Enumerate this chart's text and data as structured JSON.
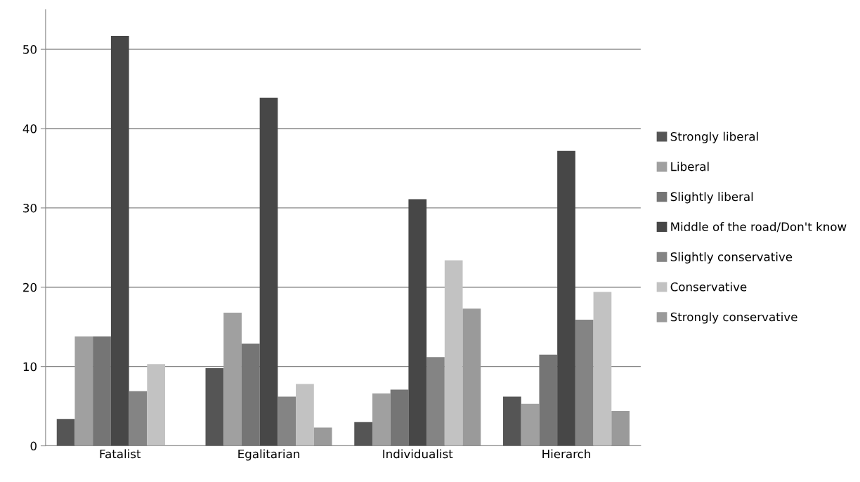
{
  "chart_data": {
    "type": "bar",
    "categories": [
      "Fatalist",
      "Egalitarian",
      "Individualist",
      "Hierarch"
    ],
    "series": [
      {
        "name": "Strongly liberal",
        "color": "#555555",
        "values": [
          3.4,
          9.8,
          3.0,
          6.2
        ]
      },
      {
        "name": "Liberal",
        "color": "#a0a0a0",
        "values": [
          13.8,
          16.8,
          6.6,
          5.3
        ]
      },
      {
        "name": "Slightly liberal",
        "color": "#757575",
        "values": [
          13.8,
          12.9,
          7.1,
          11.5
        ]
      },
      {
        "name": "Middle of the road/Don't know",
        "color": "#474747",
        "values": [
          51.7,
          43.9,
          31.1,
          37.2
        ]
      },
      {
        "name": "Slightly conservative",
        "color": "#848484",
        "values": [
          6.9,
          6.2,
          11.2,
          15.9
        ]
      },
      {
        "name": "Conservative",
        "color": "#c2c2c2",
        "values": [
          10.3,
          7.8,
          23.4,
          19.4
        ]
      },
      {
        "name": "Strongly conservative",
        "color": "#9a9a9a",
        "values": [
          0,
          2.3,
          17.3,
          4.4
        ]
      }
    ],
    "ylim": [
      0,
      55
    ],
    "yticks": [
      0,
      10,
      20,
      30,
      40,
      50
    ],
    "grid": "y",
    "legend": "right"
  }
}
